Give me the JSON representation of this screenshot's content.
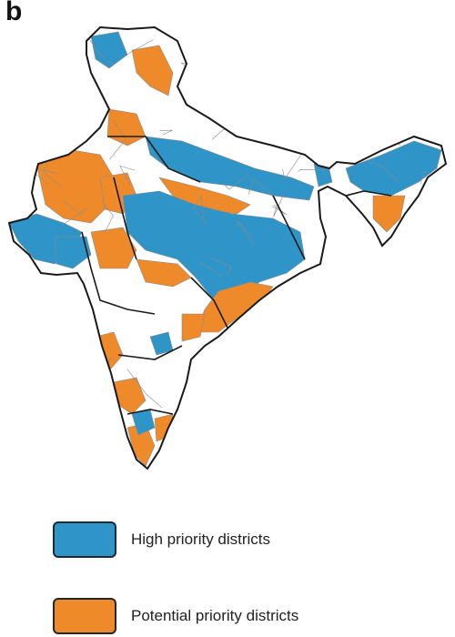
{
  "panel_label": "b",
  "colors": {
    "high_priority": "#2f95c8",
    "potential_priority": "#ef8a2a",
    "other": "#ffffff",
    "boundary": "#1a1a1a",
    "district_line": "#8a8a8a"
  },
  "legend": {
    "items": [
      {
        "label": "High priority districts",
        "color_key": "high_priority"
      },
      {
        "label": "Potential priority districts",
        "color_key": "potential_priority"
      }
    ]
  }
}
